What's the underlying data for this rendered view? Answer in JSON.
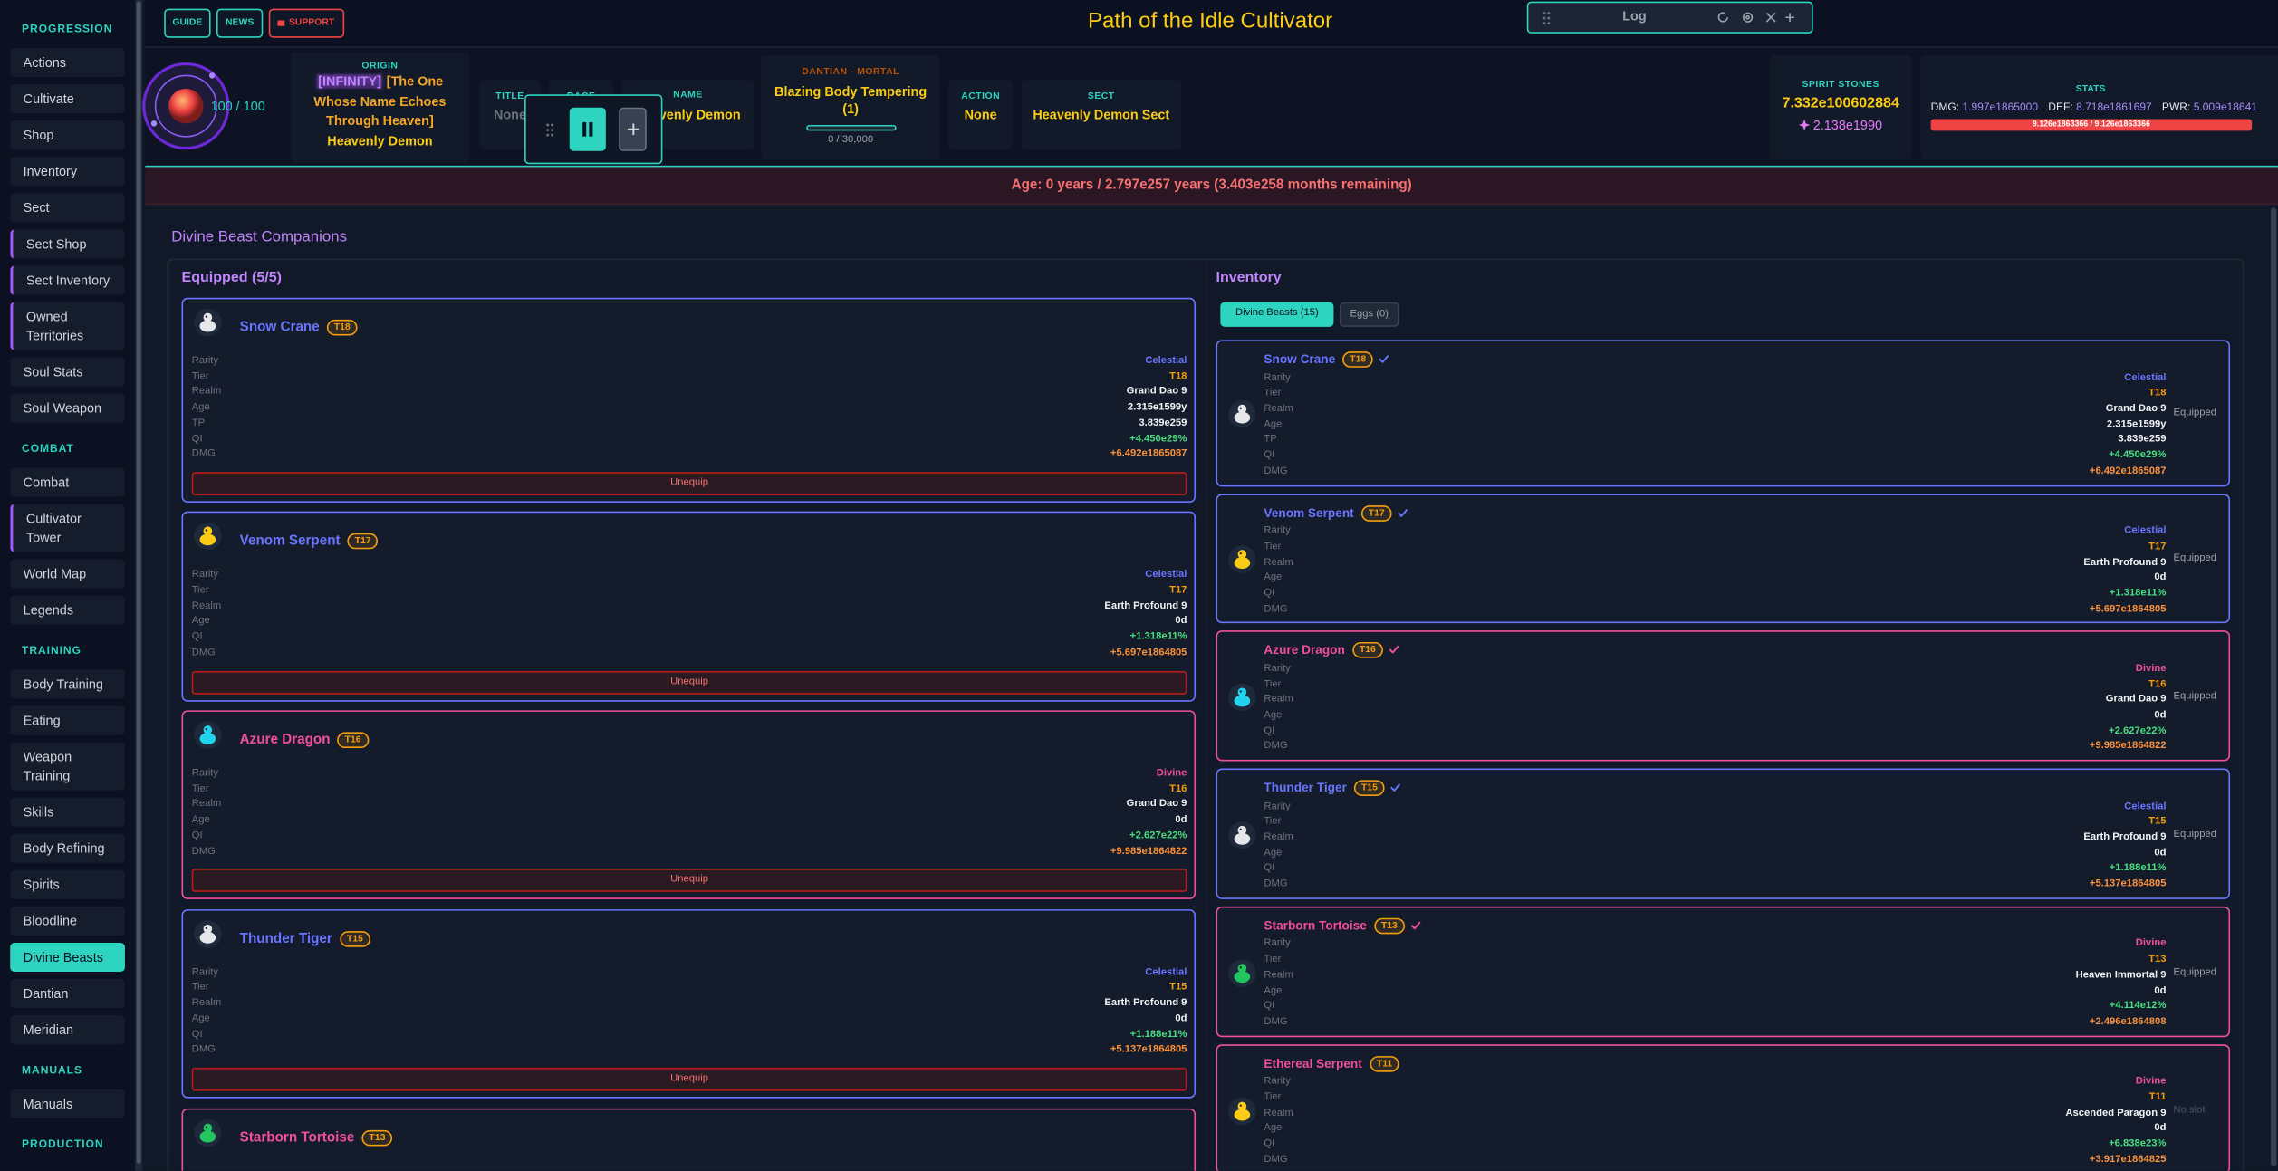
{
  "sidebar": {
    "sections": [
      {
        "title": "PROGRESSION",
        "items": [
          {
            "label": "Actions"
          },
          {
            "label": "Cultivate"
          },
          {
            "label": "Shop"
          },
          {
            "label": "Inventory"
          },
          {
            "label": "Sect"
          },
          {
            "label": "Sect Shop",
            "border": "#a855f7"
          },
          {
            "label": "Sect Inventory",
            "border": "#a855f7"
          },
          {
            "label": "Owned Territories",
            "border": "#a855f7"
          },
          {
            "label": "Soul Stats"
          },
          {
            "label": "Soul Weapon"
          }
        ]
      },
      {
        "title": "COMBAT",
        "items": [
          {
            "label": "Combat"
          },
          {
            "label": "Cultivator Tower",
            "border": "#a855f7"
          },
          {
            "label": "World Map"
          },
          {
            "label": "Legends"
          }
        ]
      },
      {
        "title": "TRAINING",
        "items": [
          {
            "label": "Body Training"
          },
          {
            "label": "Eating"
          },
          {
            "label": "Weapon Training"
          },
          {
            "label": "Skills"
          },
          {
            "label": "Body Refining"
          },
          {
            "label": "Spirits"
          },
          {
            "label": "Bloodline"
          },
          {
            "label": "Divine Beasts",
            "active": true
          },
          {
            "label": "Dantian"
          },
          {
            "label": "Meridian"
          }
        ]
      },
      {
        "title": "MANUALS",
        "items": [
          {
            "label": "Manuals"
          }
        ]
      },
      {
        "title": "PRODUCTION",
        "items": []
      }
    ]
  },
  "topbar": {
    "buttons": [
      {
        "label": "GUIDE",
        "color": "#2dd4bf"
      },
      {
        "label": "NEWS",
        "color": "#2dd4bf"
      },
      {
        "label": "SUPPORT",
        "color": "#ef4444"
      }
    ],
    "title": "Path of the Idle Cultivator",
    "log": "Log"
  },
  "status": {
    "orb": "100 / 100",
    "origin": {
      "label": "ORIGIN",
      "tag": "[INFINITY]",
      "text": "[The One Whose Name Echoes Through Heaven]",
      "name": "Heavenly Demon"
    },
    "title": {
      "label": "TITLE",
      "value": "None"
    },
    "race": {
      "label": "RACE"
    },
    "name": {
      "label": "NAME",
      "value": "Heavenly Demon"
    },
    "dantian": {
      "label": "DANTIAN - MORTAL",
      "value": "Blazing Body Tempering (1)",
      "progress": "0 / 30,000"
    },
    "action": {
      "label": "ACTION",
      "value": "None"
    },
    "sect": {
      "label": "SECT",
      "value": "Heavenly Demon Sect"
    },
    "spirit_stones": {
      "label": "SPIRIT STONES",
      "value": "7.332e100602884",
      "secondary": "2.138e1990"
    },
    "stats": {
      "label": "STATS",
      "items": [
        {
          "label": "DMG:",
          "value": "1.997e1865000"
        },
        {
          "label": "DEF:",
          "value": "8.718e1861697"
        },
        {
          "label": "PWR:",
          "value": "5.009e18641"
        }
      ],
      "health": "9.126e1863366 / 9.126e1863366"
    }
  },
  "age": "Age: 0 years / 2.797e257 years (3.403e258 months remaining)",
  "beasts": {
    "title": "Divine Beast Companions",
    "equipped": {
      "title": "Equipped (5/5)",
      "cards": [
        {
          "name": "Snow Crane",
          "tier": "T18",
          "color": "#6875ff",
          "rows": [
            [
              "Rarity",
              "Celestial",
              "#6875ff"
            ],
            [
              "Tier",
              "T18",
              "#f59e0b"
            ],
            [
              "Realm",
              "Grand Dao 9"
            ],
            [
              "Age",
              "2.315e1599y"
            ],
            [
              "TP",
              "3.839e259"
            ],
            [
              "QI",
              "+4.450e29%",
              "#4ade80"
            ],
            [
              "DMG",
              "+6.492e1865087",
              "#fb923c"
            ]
          ],
          "action": "Unequip"
        },
        {
          "name": "Venom Serpent",
          "tier": "T17",
          "color": "#6875ff",
          "rows": [
            [
              "Rarity",
              "Celestial",
              "#6875ff"
            ],
            [
              "Tier",
              "T17",
              "#f59e0b"
            ],
            [
              "Realm",
              "Earth Profound 9"
            ],
            [
              "Age",
              "0d"
            ],
            [
              "QI",
              "+1.318e11%",
              "#4ade80"
            ],
            [
              "DMG",
              "+5.697e1864805",
              "#fb923c"
            ]
          ],
          "action": "Unequip"
        },
        {
          "name": "Azure Dragon",
          "tier": "T16",
          "color": "#f0509a",
          "rows": [
            [
              "Rarity",
              "Divine",
              "#f0509a"
            ],
            [
              "Tier",
              "T16",
              "#f59e0b"
            ],
            [
              "Realm",
              "Grand Dao 9"
            ],
            [
              "Age",
              "0d"
            ],
            [
              "QI",
              "+2.627e22%",
              "#4ade80"
            ],
            [
              "DMG",
              "+9.985e1864822",
              "#fb923c"
            ]
          ],
          "action": "Unequip"
        },
        {
          "name": "Thunder Tiger",
          "tier": "T15",
          "color": "#6875ff",
          "rows": [
            [
              "Rarity",
              "Celestial",
              "#6875ff"
            ],
            [
              "Tier",
              "T15",
              "#f59e0b"
            ],
            [
              "Realm",
              "Earth Profound 9"
            ],
            [
              "Age",
              "0d"
            ],
            [
              "QI",
              "+1.188e11%",
              "#4ade80"
            ],
            [
              "DMG",
              "+5.137e1864805",
              "#fb923c"
            ]
          ],
          "action": "Unequip"
        },
        {
          "name": "Starborn Tortoise",
          "tier": "T13",
          "color": "#f0509a",
          "rows": []
        }
      ]
    },
    "inventory": {
      "title": "Inventory",
      "tabs": [
        "Divine Beasts (15)",
        "Eggs (0)"
      ],
      "cards": [
        {
          "name": "Snow Crane",
          "tier": "T18",
          "color": "#6875ff",
          "checked": true,
          "status": "Equipped",
          "rows": [
            [
              "Rarity",
              "Celestial",
              "#6875ff"
            ],
            [
              "Tier",
              "T18",
              "#f59e0b"
            ],
            [
              "Realm",
              "Grand Dao 9"
            ],
            [
              "Age",
              "2.315e1599y"
            ],
            [
              "TP",
              "3.839e259"
            ],
            [
              "QI",
              "+4.450e29%",
              "#4ade80"
            ],
            [
              "DMG",
              "+6.492e1865087",
              "#fb923c"
            ]
          ]
        },
        {
          "name": "Venom Serpent",
          "tier": "T17",
          "color": "#6875ff",
          "checked": true,
          "status": "Equipped",
          "rows": [
            [
              "Rarity",
              "Celestial",
              "#6875ff"
            ],
            [
              "Tier",
              "T17",
              "#f59e0b"
            ],
            [
              "Realm",
              "Earth Profound 9"
            ],
            [
              "Age",
              "0d"
            ],
            [
              "QI",
              "+1.318e11%",
              "#4ade80"
            ],
            [
              "DMG",
              "+5.697e1864805",
              "#fb923c"
            ]
          ]
        },
        {
          "name": "Azure Dragon",
          "tier": "T16",
          "color": "#f0509a",
          "checked": true,
          "status": "Equipped",
          "rows": [
            [
              "Rarity",
              "Divine",
              "#f0509a"
            ],
            [
              "Tier",
              "T16",
              "#f59e0b"
            ],
            [
              "Realm",
              "Grand Dao 9"
            ],
            [
              "Age",
              "0d"
            ],
            [
              "QI",
              "+2.627e22%",
              "#4ade80"
            ],
            [
              "DMG",
              "+9.985e1864822",
              "#fb923c"
            ]
          ]
        },
        {
          "name": "Thunder Tiger",
          "tier": "T15",
          "color": "#6875ff",
          "checked": true,
          "status": "Equipped",
          "rows": [
            [
              "Rarity",
              "Celestial",
              "#6875ff"
            ],
            [
              "Tier",
              "T15",
              "#f59e0b"
            ],
            [
              "Realm",
              "Earth Profound 9"
            ],
            [
              "Age",
              "0d"
            ],
            [
              "QI",
              "+1.188e11%",
              "#4ade80"
            ],
            [
              "DMG",
              "+5.137e1864805",
              "#fb923c"
            ]
          ]
        },
        {
          "name": "Starborn Tortoise",
          "tier": "T13",
          "color": "#f0509a",
          "checked": true,
          "status": "Equipped",
          "rows": [
            [
              "Rarity",
              "Divine",
              "#f0509a"
            ],
            [
              "Tier",
              "T13",
              "#f59e0b"
            ],
            [
              "Realm",
              "Heaven Immortal 9"
            ],
            [
              "Age",
              "0d"
            ],
            [
              "QI",
              "+4.114e12%",
              "#4ade80"
            ],
            [
              "DMG",
              "+2.496e1864808",
              "#fb923c"
            ]
          ]
        },
        {
          "name": "Ethereal Serpent",
          "tier": "T11",
          "color": "#f0509a",
          "checked": false,
          "status": "No slot",
          "rows": [
            [
              "Rarity",
              "Divine",
              "#f0509a"
            ],
            [
              "Tier",
              "T11",
              "#f59e0b"
            ],
            [
              "Realm",
              "Ascended Paragon 9"
            ],
            [
              "Age",
              "0d"
            ],
            [
              "QI",
              "+6.838e23%",
              "#4ade80"
            ],
            [
              "DMG",
              "+3.917e1864825",
              "#fb923c"
            ]
          ]
        }
      ]
    }
  }
}
